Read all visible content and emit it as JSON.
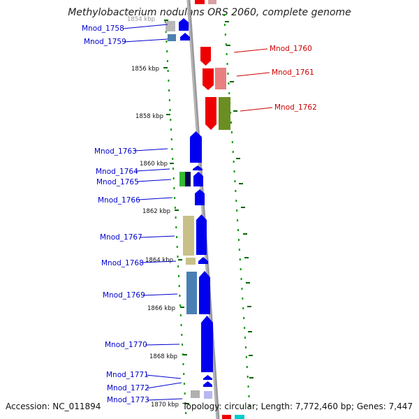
{
  "title": "Methylobacterium nodulans ORS 2060, complete genome",
  "footer": {
    "accession": "Accession: NC_011894",
    "summary": "Topology: circular; Length: 7,772,460 bp; Genes: 7,447"
  },
  "colors": {
    "forward_strand": "#0000ee",
    "reverse_strand": "#ee0000",
    "left_label": "#0000cc",
    "right_label": "#cc0000",
    "tick": "#006600",
    "backbone": "#888888"
  },
  "kbp_ticks": [
    {
      "label": "1854 kbp",
      "faded": true
    },
    {
      "label": "1856 kbp"
    },
    {
      "label": "1858 kbp"
    },
    {
      "label": "1860 kbp"
    },
    {
      "label": "1862 kbp"
    },
    {
      "label": "1864 kbp"
    },
    {
      "label": "1866 kbp"
    },
    {
      "label": "1868 kbp"
    },
    {
      "label": "1870 kbp"
    }
  ],
  "left_genes": [
    "Mnod_1758",
    "Mnod_1759",
    "Mnod_1763",
    "Mnod_1764",
    "Mnod_1765",
    "Mnod_1766",
    "Mnod_1767",
    "Mnod_1768",
    "Mnod_1769",
    "Mnod_1770",
    "Mnod_1771",
    "Mnod_1772",
    "Mnod_1773"
  ],
  "right_genes": [
    "Mnod_1760",
    "Mnod_1761",
    "Mnod_1762"
  ]
}
